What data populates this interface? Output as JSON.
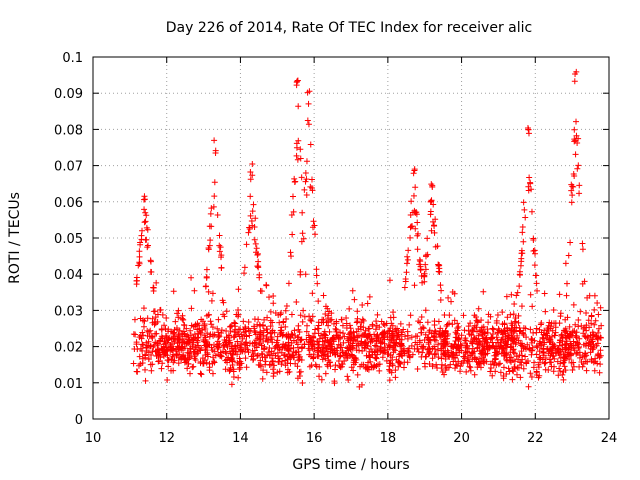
{
  "chart_data": {
    "type": "scatter",
    "title": "Day 226 of 2014, Rate Of TEC Index for receiver alic",
    "xlabel": "GPS time / hours",
    "ylabel": "ROTI / TECUs",
    "xlim": [
      10,
      24
    ],
    "ylim": [
      0,
      0.1
    ],
    "xticks": [
      10,
      12,
      14,
      16,
      18,
      20,
      22,
      24
    ],
    "xtick_labels": [
      "10",
      "12",
      "14",
      "16",
      "18",
      "20",
      "22",
      "24"
    ],
    "yticks": [
      0,
      0.01,
      0.02,
      0.03,
      0.04,
      0.05,
      0.06,
      0.07,
      0.08,
      0.09,
      0.1
    ],
    "ytick_labels": [
      "0",
      "0.01",
      "0.02",
      "0.03",
      "0.04",
      "0.05",
      "0.06",
      "0.07",
      "0.08",
      "0.09",
      "0.1"
    ],
    "grid": true,
    "marker": "+",
    "marker_color": "#ff0000",
    "series": [
      {
        "name": "ROTI",
        "x_range": [
          11.1,
          23.8
        ],
        "typical_y_range": [
          0.005,
          0.035
        ],
        "peaks": [
          {
            "x": 11.4,
            "y": 0.064
          },
          {
            "x": 13.3,
            "y": 0.077
          },
          {
            "x": 14.3,
            "y": 0.071
          },
          {
            "x": 15.55,
            "y": 0.096
          },
          {
            "x": 15.85,
            "y": 0.091
          },
          {
            "x": 18.7,
            "y": 0.07
          },
          {
            "x": 19.2,
            "y": 0.068
          },
          {
            "x": 21.8,
            "y": 0.082
          },
          {
            "x": 23.1,
            "y": 0.096
          }
        ]
      }
    ]
  }
}
